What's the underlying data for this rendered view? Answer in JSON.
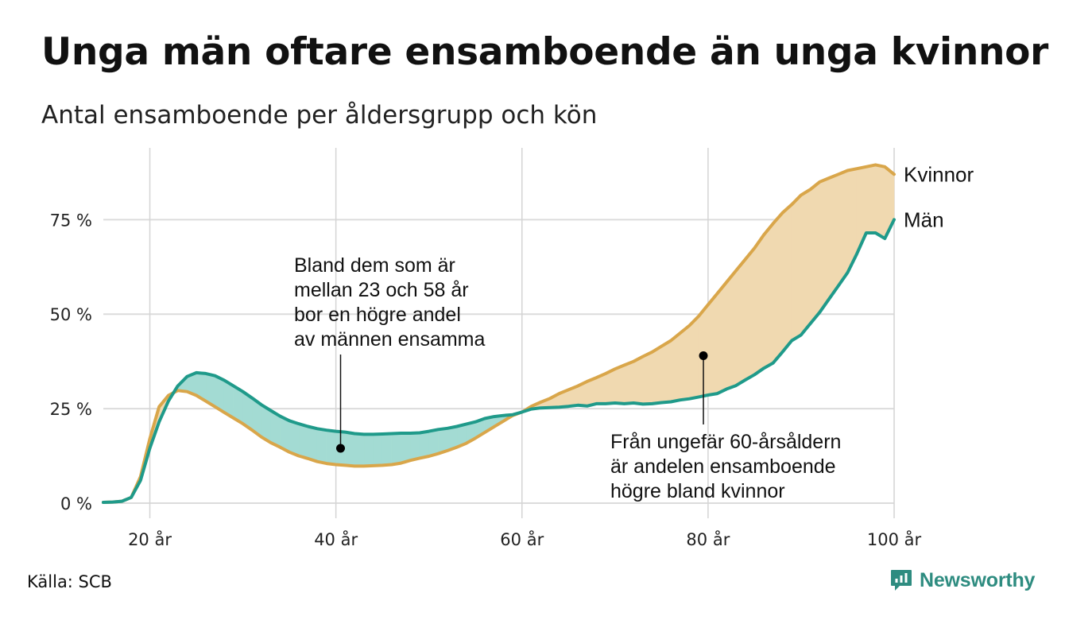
{
  "title": "Unga män oftare ensamboende än unga kvinnor",
  "subtitle": "Antal ensamboende per åldersgrupp och kön",
  "source": "Källa: SCB",
  "brand": "Newsworthy",
  "chart_data": {
    "type": "line",
    "x_ticks": [
      {
        "value": 20,
        "label": "20 år"
      },
      {
        "value": 40,
        "label": "40 år"
      },
      {
        "value": 60,
        "label": "60 år"
      },
      {
        "value": 80,
        "label": "80 år"
      },
      {
        "value": 100,
        "label": "100 år"
      }
    ],
    "y_ticks": [
      {
        "value": 0,
        "label": "0 %"
      },
      {
        "value": 25,
        "label": "25 %"
      },
      {
        "value": 50,
        "label": "50 %"
      },
      {
        "value": 75,
        "label": "75 %"
      }
    ],
    "xlim": [
      15,
      100
    ],
    "ylim": [
      -4,
      94
    ],
    "grid": true,
    "colors": {
      "man": "#1f9a8a",
      "kvinna": "#d9a64a",
      "fill_men_higher": "#a3dbd3",
      "fill_women_higher": "#f0d9b0"
    },
    "x": [
      15,
      16,
      17,
      18,
      19,
      20,
      21,
      22,
      23,
      24,
      25,
      26,
      27,
      28,
      29,
      30,
      31,
      32,
      33,
      34,
      35,
      36,
      37,
      38,
      39,
      40,
      41,
      42,
      43,
      44,
      45,
      46,
      47,
      48,
      49,
      50,
      51,
      52,
      53,
      54,
      55,
      56,
      57,
      58,
      59,
      60,
      61,
      62,
      63,
      64,
      65,
      66,
      67,
      68,
      69,
      70,
      71,
      72,
      73,
      74,
      75,
      76,
      77,
      78,
      79,
      80,
      81,
      82,
      83,
      84,
      85,
      86,
      87,
      88,
      89,
      90,
      91,
      92,
      93,
      94,
      95,
      96,
      97,
      98,
      99,
      100
    ],
    "series": [
      {
        "name": "Kvinnor",
        "values": [
          0.2,
          0.3,
          0.5,
          1.5,
          7,
          17,
          25.5,
          28.5,
          29.8,
          29.5,
          28.5,
          27,
          25.5,
          24,
          22.5,
          21,
          19.3,
          17.5,
          16,
          14.8,
          13.5,
          12.5,
          11.8,
          11,
          10.5,
          10.2,
          10,
          9.8,
          9.8,
          9.9,
          10,
          10.2,
          10.6,
          11.3,
          11.9,
          12.4,
          13.1,
          13.9,
          14.8,
          15.8,
          17.2,
          18.7,
          20.2,
          21.7,
          23.2,
          24.1,
          25.6,
          26.7,
          27.7,
          29,
          30,
          31,
          32.2,
          33.2,
          34.3,
          35.5,
          36.5,
          37.5,
          38.8,
          40,
          41.5,
          43,
          45,
          47,
          49.5,
          52.5,
          55.5,
          58.5,
          61.5,
          64.5,
          67.5,
          71,
          74,
          76.8,
          79,
          81.5,
          83,
          85,
          86,
          87,
          88,
          88.5,
          89,
          89.5,
          89,
          87
        ]
      },
      {
        "name": "Män",
        "values": [
          0.2,
          0.3,
          0.5,
          1.5,
          6,
          14.5,
          21.5,
          27,
          31,
          33.5,
          34.5,
          34.3,
          33.7,
          32.5,
          31,
          29.5,
          27.8,
          26,
          24.5,
          23,
          21.8,
          21,
          20.3,
          19.7,
          19.3,
          19,
          18.8,
          18.4,
          18.2,
          18.2,
          18.3,
          18.4,
          18.5,
          18.5,
          18.6,
          19,
          19.5,
          19.8,
          20.3,
          20.9,
          21.5,
          22.4,
          22.9,
          23.2,
          23.4,
          24.1,
          24.9,
          25.2,
          25.3,
          25.4,
          25.6,
          25.9,
          25.7,
          26.3,
          26.3,
          26.5,
          26.3,
          26.5,
          26.2,
          26.3,
          26.6,
          26.8,
          27.3,
          27.6,
          28.1,
          28.6,
          29,
          30.2,
          31.1,
          32.6,
          34,
          35.7,
          37.1,
          40,
          43,
          44.5,
          47.5,
          50.5,
          54,
          57.5,
          61,
          66,
          71.5,
          71.5,
          70,
          75
        ]
      }
    ],
    "annotations": [
      {
        "text_lines": [
          "Bland dem som är",
          "mellan 23 och 58 år",
          "bor en högre andel",
          "av männen ensamma"
        ],
        "point": {
          "x": 40.5,
          "y": 14.5
        }
      },
      {
        "text_lines": [
          "Från ungefär 60-årsåldern",
          "är andelen ensamboende",
          "högre bland kvinnor"
        ],
        "point": {
          "x": 79.5,
          "y": 39
        }
      }
    ]
  }
}
